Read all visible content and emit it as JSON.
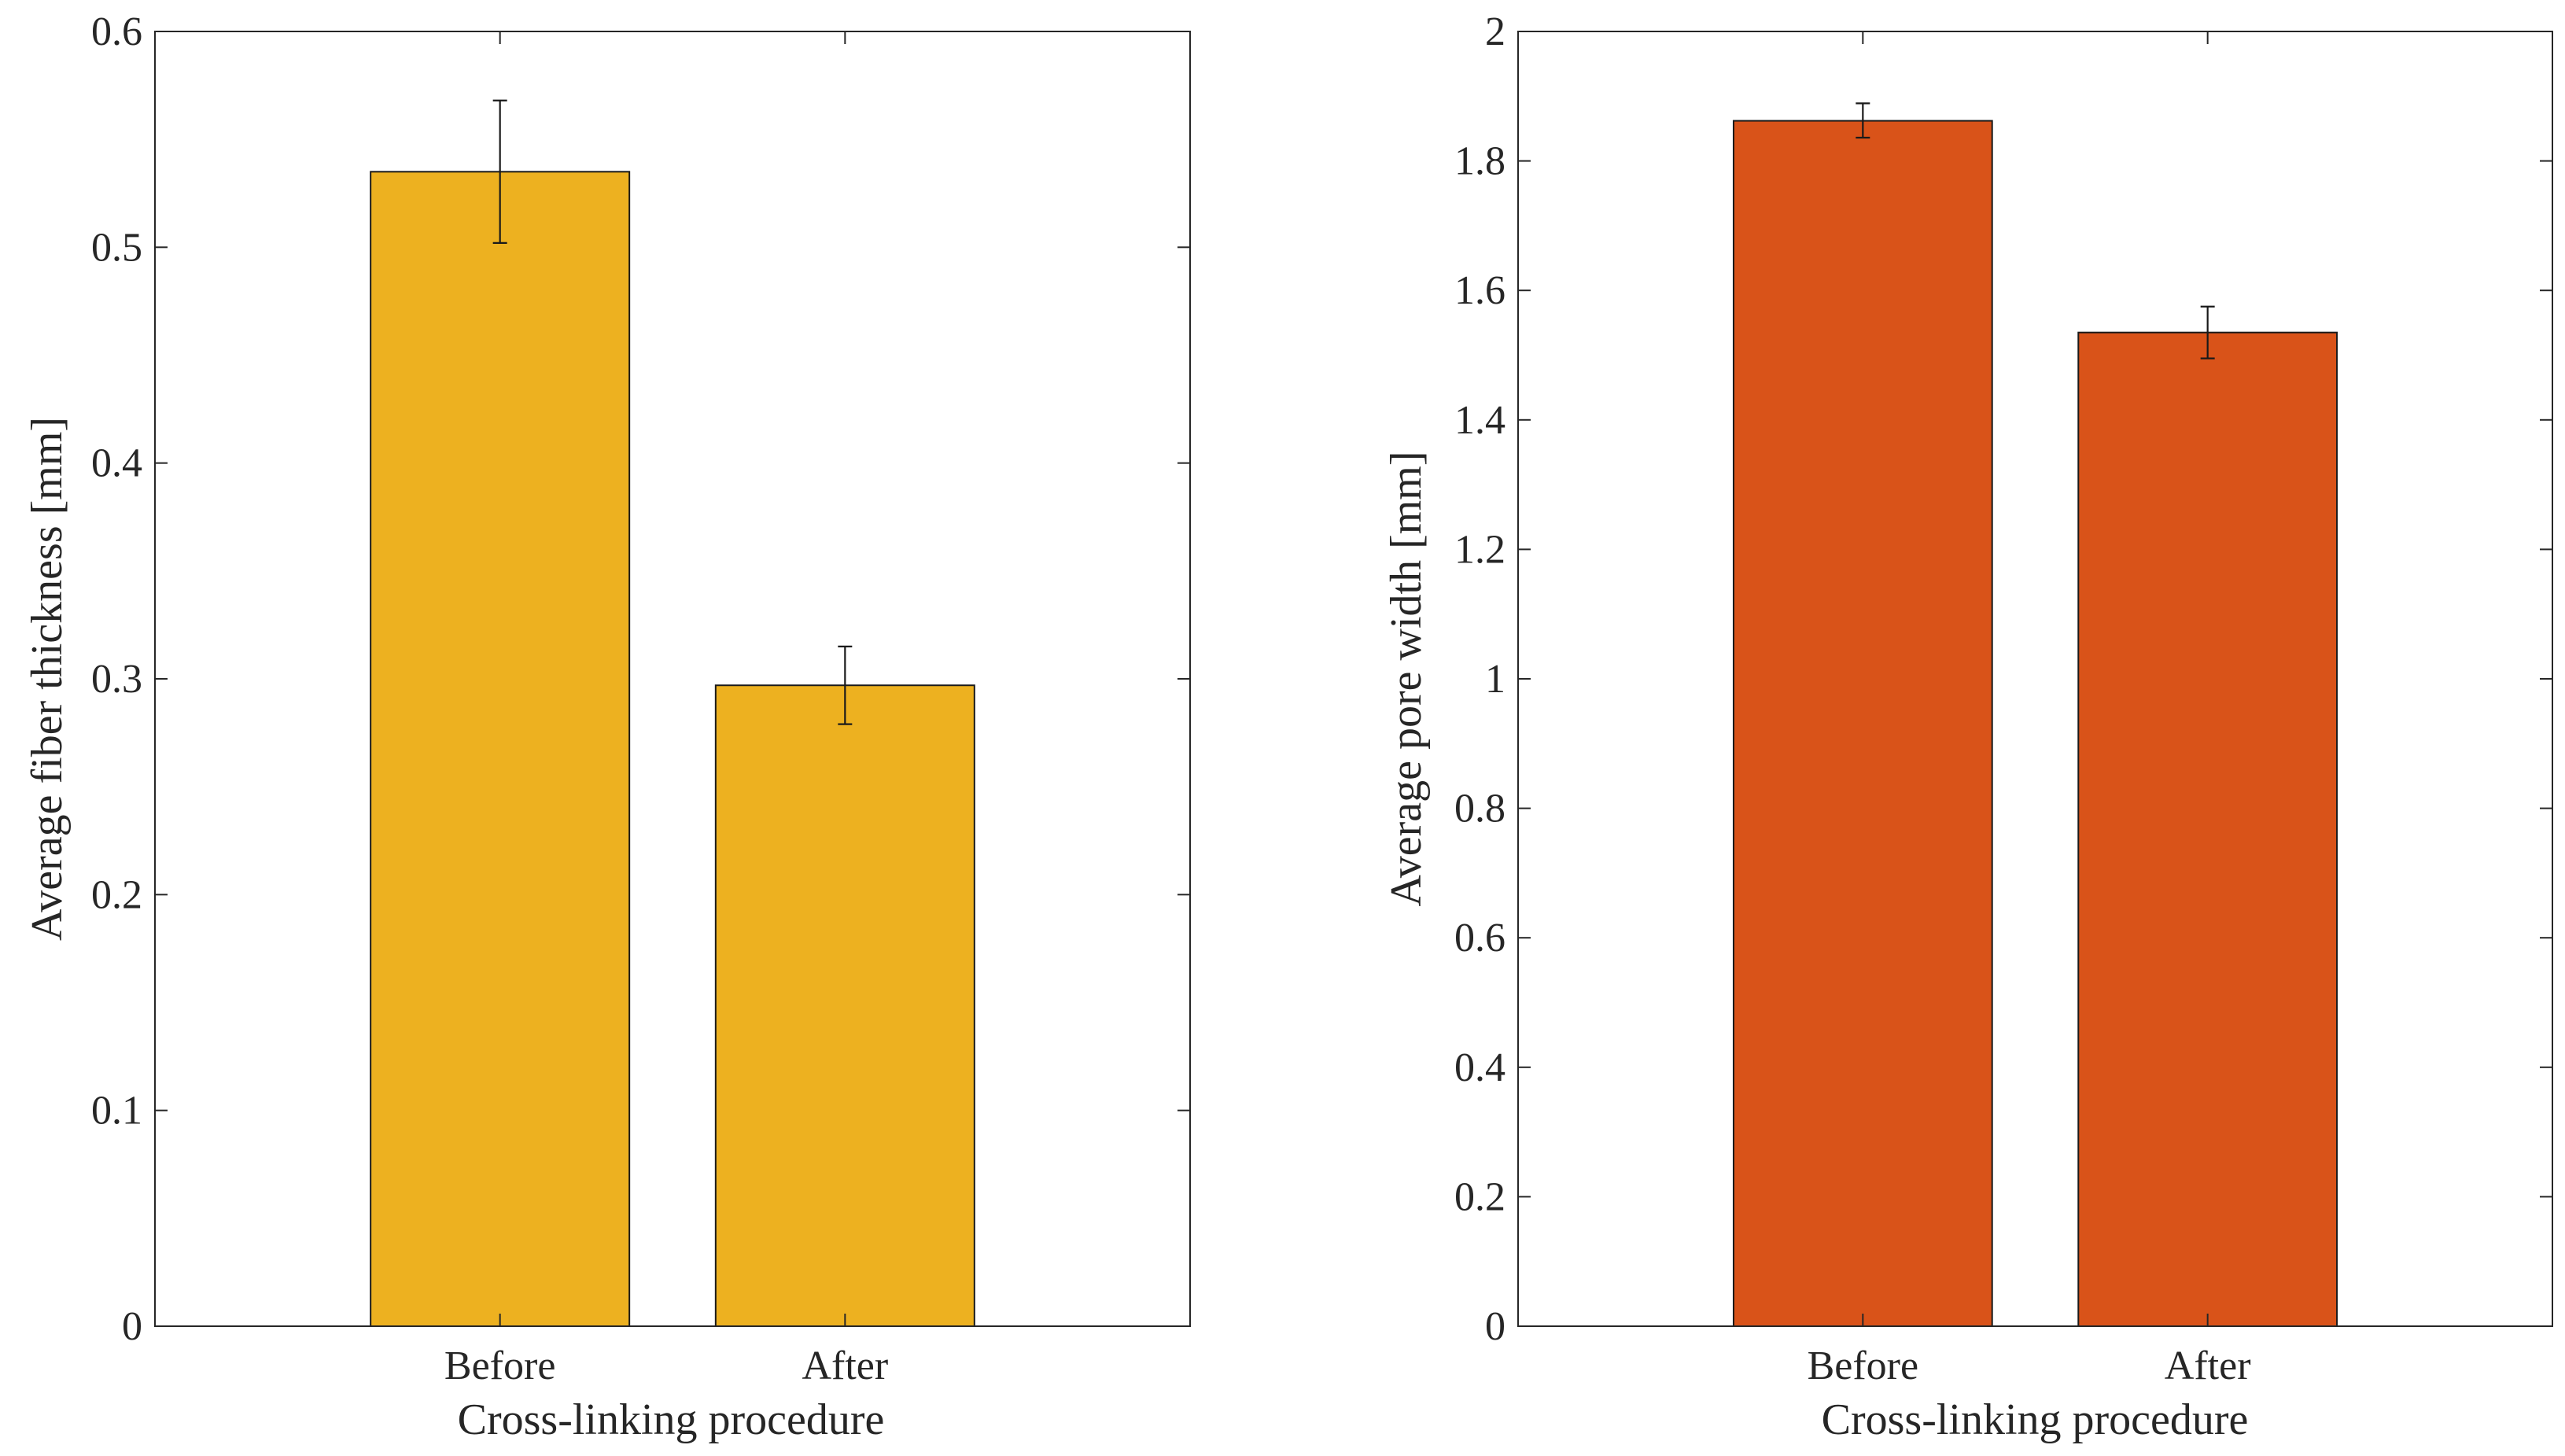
{
  "chart_data": [
    {
      "type": "bar",
      "categories": [
        "Before",
        "After"
      ],
      "values": [
        0.535,
        0.297
      ],
      "error_bars": [
        {
          "low": 0.502,
          "high": 0.568
        },
        {
          "low": 0.279,
          "high": 0.315
        }
      ],
      "bar_color": "#EDB120",
      "xlabel": "Cross-linking procedure",
      "ylabel": "Average fiber thickness [mm]",
      "ylim": [
        0,
        0.6
      ],
      "yticks": [
        0,
        0.1,
        0.2,
        0.3,
        0.4,
        0.5,
        0.6
      ],
      "ytick_labels": [
        "0",
        "0.1",
        "0.2",
        "0.3",
        "0.4",
        "0.5",
        "0.6"
      ],
      "grid": false
    },
    {
      "type": "bar",
      "categories": [
        "Before",
        "After"
      ],
      "values": [
        1.862,
        1.535
      ],
      "error_bars": [
        {
          "low": 1.836,
          "high": 1.889
        },
        {
          "low": 1.495,
          "high": 1.575
        }
      ],
      "bar_color": "#D95319",
      "xlabel": "Cross-linking procedure",
      "ylabel": "Average pore width [mm]",
      "ylim": [
        0,
        2
      ],
      "yticks": [
        0,
        0.2,
        0.4,
        0.6,
        0.8,
        1,
        1.2,
        1.4,
        1.6,
        1.8,
        2
      ],
      "ytick_labels": [
        "0",
        "0.2",
        "0.4",
        "0.6",
        "0.8",
        "1",
        "1.2",
        "1.4",
        "1.6",
        "1.8",
        "2"
      ],
      "grid": false
    }
  ]
}
